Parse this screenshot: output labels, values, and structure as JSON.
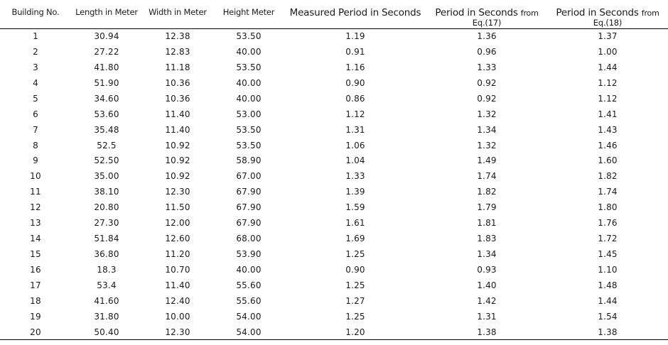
{
  "table": {
    "headers": {
      "building_no": "Building No.",
      "length": "Length in Meter",
      "width": "Width in Meter",
      "height": "Height Meter",
      "measured": "Measured Period in Seconds",
      "eq17_main": "Period in Seconds",
      "eq17_from": "from",
      "eq17_eq": "Eq.(17)",
      "eq18_main": "Period in Seconds",
      "eq18_from": "from",
      "eq18_eq": "Eq.(18)"
    },
    "rows": [
      [
        "1",
        "30.94",
        "12.38",
        "53.50",
        "1.19",
        "1.36",
        "1.37"
      ],
      [
        "2",
        "27.22",
        "12.83",
        "40.00",
        "0.91",
        "0.96",
        "1.00"
      ],
      [
        "3",
        "41.80",
        "11.18",
        "53.50",
        "1.16",
        "1.33",
        "1.44"
      ],
      [
        "4",
        "51.90",
        "10.36",
        "40.00",
        "0.90",
        "0.92",
        "1.12"
      ],
      [
        "5",
        "34.60",
        "10.36",
        "40.00",
        "0.86",
        "0.92",
        "1.12"
      ],
      [
        "6",
        "53.60",
        "11.40",
        "53.00",
        "1.12",
        "1.32",
        "1.41"
      ],
      [
        "7",
        "35.48",
        "11.40",
        "53.50",
        "1.31",
        "1.34",
        "1.43"
      ],
      [
        "8",
        "52.5",
        "10.92",
        "53.50",
        "1.06",
        "1.32",
        "1.46"
      ],
      [
        "9",
        "52.50",
        "10.92",
        "58.90",
        "1.04",
        "1.49",
        "1.60"
      ],
      [
        "10",
        "35.00",
        "10.92",
        "67.00",
        "1.33",
        "1.74",
        "1.82"
      ],
      [
        "11",
        "38.10",
        "12.30",
        "67.90",
        "1.39",
        "1.82",
        "1.74"
      ],
      [
        "12",
        "20.80",
        "11.50",
        "67.90",
        "1.59",
        "1.79",
        "1.80"
      ],
      [
        "13",
        "27.30",
        "12.00",
        "67.90",
        "1.61",
        "1.81",
        "1.76"
      ],
      [
        "14",
        "51.84",
        "12.60",
        "68.00",
        "1.69",
        "1.83",
        "1.72"
      ],
      [
        "15",
        "36.80",
        "11.20",
        "53.90",
        "1.25",
        "1.34",
        "1.45"
      ],
      [
        "16",
        "18.3",
        "10.70",
        "40.00",
        "0.90",
        "0.93",
        "1.10"
      ],
      [
        "17",
        "53.4",
        "11.40",
        "55.60",
        "1.25",
        "1.40",
        "1.48"
      ],
      [
        "18",
        "41.60",
        "12.40",
        "55.60",
        "1.27",
        "1.42",
        "1.44"
      ],
      [
        "19",
        "31.80",
        "10.00",
        "54.00",
        "1.25",
        "1.31",
        "1.54"
      ],
      [
        "20",
        "50.40",
        "12.30",
        "54.00",
        "1.20",
        "1.38",
        "1.38"
      ]
    ]
  }
}
